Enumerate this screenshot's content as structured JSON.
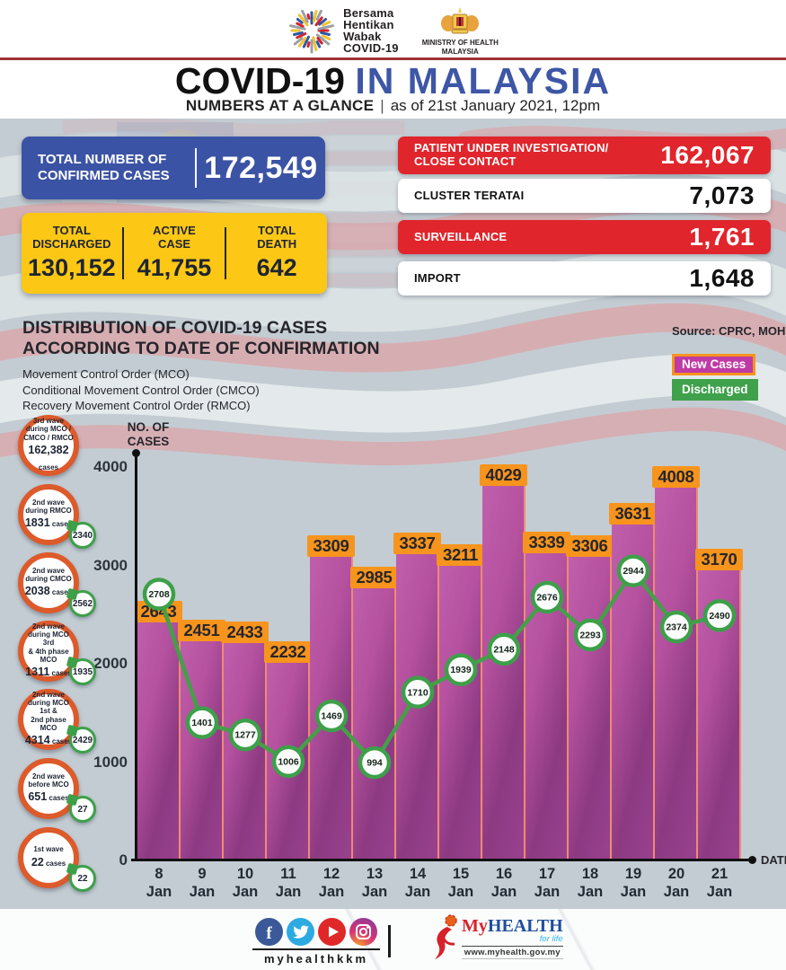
{
  "header": {
    "campaign_logo": {
      "lines": [
        "Bersama",
        "Hentikan",
        "Wabak",
        "COVID-19"
      ]
    },
    "moh_logo": {
      "lines": [
        "MINISTRY OF HEALTH",
        "MALAYSIA"
      ]
    },
    "title": {
      "black": "COVID-19",
      "blue": "IN MALAYSIA"
    },
    "subtitle": {
      "bold": "NUMBERS AT A GLANCE",
      "sep": "|",
      "rest": "as of 21st January 2021, 12pm"
    }
  },
  "totals": {
    "confirmed": {
      "label_line1": "TOTAL NUMBER OF",
      "label_line2": "CONFIRMED CASES",
      "value": "172,549"
    },
    "summary": [
      {
        "label_line1": "TOTAL",
        "label_line2": "DISCHARGED",
        "value": "130,152"
      },
      {
        "label_line1": "ACTIVE",
        "label_line2": "CASE",
        "value": "41,755"
      },
      {
        "label_line1": "TOTAL",
        "label_line2": "DEATH",
        "value": "642"
      }
    ],
    "right_stats": [
      {
        "label_lines": [
          "PATIENT UNDER INVESTIGATION/",
          "CLOSE CONTACT"
        ],
        "value": "162,067",
        "variant": "red"
      },
      {
        "label_lines": [
          "CLUSTER TERATAI"
        ],
        "value": "7,073",
        "variant": "white"
      },
      {
        "label_lines": [
          "SURVEILLANCE"
        ],
        "value": "1,761",
        "variant": "red"
      },
      {
        "label_lines": [
          "IMPORT"
        ],
        "value": "1,648",
        "variant": "white"
      }
    ]
  },
  "distribution": {
    "title_line1": "DISTRIBUTION OF COVID-19 CASES",
    "title_line2": "ACCORDING TO DATE OF CONFIRMATION",
    "mco_lines": [
      "Movement Control Order (MCO)",
      "Conditional Movement Control Order (CMCO)",
      "Recovery Movement Control Order (RMCO)"
    ],
    "source": "Source: CPRC, MOH",
    "legend": [
      {
        "label": "New Cases",
        "bg": "#bf3aa4",
        "border": "#f7941d"
      },
      {
        "label": "Discharged",
        "bg": "#3fa14b",
        "border": "#3fa14b"
      }
    ]
  },
  "wave_annotations": [
    {
      "lines": [
        "3rd wave",
        "during MCO /",
        "CMCO / RMCO"
      ],
      "value": "162,382",
      "suffix": "cases",
      "badge": null
    },
    {
      "lines": [
        "2nd wave",
        "during RMCO"
      ],
      "value": "1831",
      "suffix": "cases",
      "badge": "2340"
    },
    {
      "lines": [
        "2nd wave",
        "during CMCO"
      ],
      "value": "2038",
      "suffix": "cases",
      "badge": "2562"
    },
    {
      "lines": [
        "2nd wave",
        "during MCO 3rd",
        "& 4th phase MCO"
      ],
      "value": "1311",
      "suffix": "cases",
      "badge": "1935"
    },
    {
      "lines": [
        "2nd wave",
        "during MCO 1st &",
        "2nd phase MCO"
      ],
      "value": "4314",
      "suffix": "cases",
      "badge": "2429"
    },
    {
      "lines": [
        "2nd wave",
        "before MCO"
      ],
      "value": "651",
      "suffix": "cases",
      "badge": "27"
    },
    {
      "lines": [
        "1st wave"
      ],
      "value": "22",
      "suffix": "cases",
      "badge": "22"
    }
  ],
  "chart_data": {
    "type": "bar+line",
    "categories": [
      "8 Jan",
      "9 Jan",
      "10 Jan",
      "11 Jan",
      "12 Jan",
      "13 Jan",
      "14 Jan",
      "15 Jan",
      "16 Jan",
      "17 Jan",
      "18 Jan",
      "19 Jan",
      "20 Jan",
      "21 Jan"
    ],
    "series": [
      {
        "name": "New Cases",
        "type": "bar",
        "color": "#b5519f",
        "cap_color": "#f7941d",
        "values": [
          2643,
          2451,
          2433,
          2232,
          3309,
          2985,
          3337,
          3211,
          4029,
          3339,
          3306,
          3631,
          4008,
          3170
        ]
      },
      {
        "name": "Discharged",
        "type": "line",
        "color": "#43a047",
        "values": [
          2708,
          1401,
          1277,
          1006,
          1469,
          994,
          1710,
          1939,
          2148,
          2676,
          2293,
          2944,
          2374,
          2490
        ]
      }
    ],
    "ylabel": "NO. OF CASES",
    "xlabel": "DATE",
    "yticks": [
      0,
      1000,
      2000,
      3000,
      4000
    ],
    "ylim": [
      0,
      4000
    ],
    "grid": false,
    "legend_position": "top-right"
  },
  "footer": {
    "social": [
      {
        "name": "facebook",
        "color": "#3b5998"
      },
      {
        "name": "twitter",
        "color": "#2caae1"
      },
      {
        "name": "youtube",
        "color": "#e02828"
      },
      {
        "name": "instagram",
        "color": "#9b4f96"
      }
    ],
    "handle": "myhealthkkm",
    "myhealth": {
      "brand_red": "My",
      "brand_blue": "HEALTH",
      "tagline": "for life",
      "url": "www.myhealth.gov.my"
    }
  }
}
